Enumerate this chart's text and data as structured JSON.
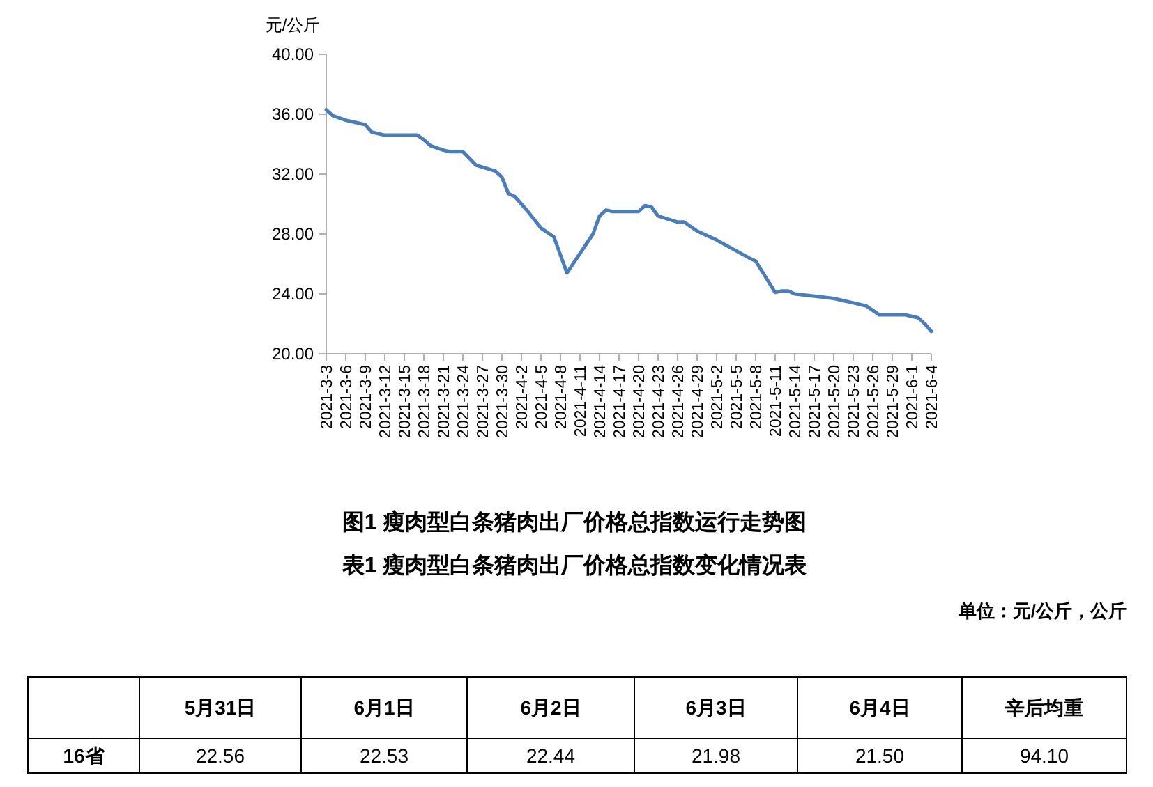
{
  "chart_data": [
    {
      "type": "line",
      "title": "图1 瘦肉型白条猪肉出厂价格总指数运行走势图",
      "ylabel": "元/公斤",
      "x": [
        "2021-03-03",
        "2021-03-04",
        "2021-03-06",
        "2021-03-09",
        "2021-03-10",
        "2021-03-12",
        "2021-03-17",
        "2021-03-18",
        "2021-03-19",
        "2021-03-21",
        "2021-03-22",
        "2021-03-24",
        "2021-03-26",
        "2021-03-29",
        "2021-03-30",
        "2021-03-31",
        "2021-04-01",
        "2021-04-03",
        "2021-04-05",
        "2021-04-07",
        "2021-04-09",
        "2021-04-13",
        "2021-04-14",
        "2021-04-15",
        "2021-04-16",
        "2021-04-20",
        "2021-04-21",
        "2021-04-22",
        "2021-04-23",
        "2021-04-26",
        "2021-04-27",
        "2021-04-29",
        "2021-05-02",
        "2021-05-07",
        "2021-05-08",
        "2021-05-10",
        "2021-05-11",
        "2021-05-12",
        "2021-05-13",
        "2021-05-14",
        "2021-05-18",
        "2021-05-20",
        "2021-05-23",
        "2021-05-25",
        "2021-05-26",
        "2021-05-27",
        "2021-05-30",
        "2021-05-31",
        "2021-06-01",
        "2021-06-02",
        "2021-06-03",
        "2021-06-04"
      ],
      "series": [
        {
          "color": "#4a7ebb",
          "values": [
            36.3,
            35.9,
            35.6,
            35.3,
            34.8,
            34.6,
            34.6,
            34.3,
            33.9,
            33.6,
            33.5,
            33.5,
            32.6,
            32.2,
            31.8,
            30.7,
            30.5,
            29.5,
            28.4,
            27.8,
            25.4,
            28.0,
            29.2,
            29.6,
            29.5,
            29.5,
            29.9,
            29.8,
            29.2,
            28.8,
            28.8,
            28.2,
            27.6,
            26.4,
            26.2,
            24.8,
            24.1,
            24.2,
            24.2,
            24.0,
            23.8,
            23.7,
            23.4,
            23.2,
            22.9,
            22.6,
            22.6,
            22.6,
            22.5,
            22.4,
            22.0,
            21.5
          ]
        }
      ],
      "xlim": [
        "2021-03-03",
        "2021-06-04"
      ],
      "xticks": [
        {
          "value": "2021-03-03",
          "label": "2021-3-3"
        },
        {
          "value": "2021-03-06",
          "label": "2021-3-6"
        },
        {
          "value": "2021-03-09",
          "label": "2021-3-9"
        },
        {
          "value": "2021-03-12",
          "label": "2021-3-12"
        },
        {
          "value": "2021-03-15",
          "label": "2021-3-15"
        },
        {
          "value": "2021-03-18",
          "label": "2021-3-18"
        },
        {
          "value": "2021-03-21",
          "label": "2021-3-21"
        },
        {
          "value": "2021-03-24",
          "label": "2021-3-24"
        },
        {
          "value": "2021-03-27",
          "label": "2021-3-27"
        },
        {
          "value": "2021-03-30",
          "label": "2021-3-30"
        },
        {
          "value": "2021-04-02",
          "label": "2021-4-2"
        },
        {
          "value": "2021-04-05",
          "label": "2021-4-5"
        },
        {
          "value": "2021-04-08",
          "label": "2021-4-8"
        },
        {
          "value": "2021-04-11",
          "label": "2021-4-11"
        },
        {
          "value": "2021-04-14",
          "label": "2021-4-14"
        },
        {
          "value": "2021-04-17",
          "label": "2021-4-17"
        },
        {
          "value": "2021-04-20",
          "label": "2021-4-20"
        },
        {
          "value": "2021-04-23",
          "label": "2021-4-23"
        },
        {
          "value": "2021-04-26",
          "label": "2021-4-26"
        },
        {
          "value": "2021-04-29",
          "label": "2021-4-29"
        },
        {
          "value": "2021-05-02",
          "label": "2021-5-2"
        },
        {
          "value": "2021-05-05",
          "label": "2021-5-5"
        },
        {
          "value": "2021-05-08",
          "label": "2021-5-8"
        },
        {
          "value": "2021-05-11",
          "label": "2021-5-11"
        },
        {
          "value": "2021-05-14",
          "label": "2021-5-14"
        },
        {
          "value": "2021-05-17",
          "label": "2021-5-17"
        },
        {
          "value": "2021-05-20",
          "label": "2021-5-20"
        },
        {
          "value": "2021-05-23",
          "label": "2021-5-23"
        },
        {
          "value": "2021-05-26",
          "label": "2021-5-26"
        },
        {
          "value": "2021-05-29",
          "label": "2021-5-29"
        },
        {
          "value": "2021-06-01",
          "label": "2021-6-1"
        },
        {
          "value": "2021-06-04",
          "label": "2021-6-4"
        }
      ],
      "ylim": [
        20,
        40
      ],
      "yticks": [
        {
          "value": 20,
          "label": "20.00"
        },
        {
          "value": 24,
          "label": "24.00"
        },
        {
          "value": 28,
          "label": "28.00"
        },
        {
          "value": 32,
          "label": "32.00"
        },
        {
          "value": 36,
          "label": "36.00"
        },
        {
          "value": 40,
          "label": "40.00"
        }
      ]
    },
    {
      "type": "other",
      "title": "表1 瘦肉型白条猪肉出厂价格总指数变化情况表",
      "annotations": [
        "单位：元/公斤，公斤"
      ],
      "categories": [
        "5月31日",
        "6月1日",
        "6月2日",
        "6月3日",
        "6月4日",
        "辛后均重"
      ],
      "y_categories": [
        "16省"
      ],
      "value_labels": [
        "22.56",
        "22.53",
        "22.44",
        "21.98",
        "21.50",
        "94.10"
      ]
    }
  ]
}
